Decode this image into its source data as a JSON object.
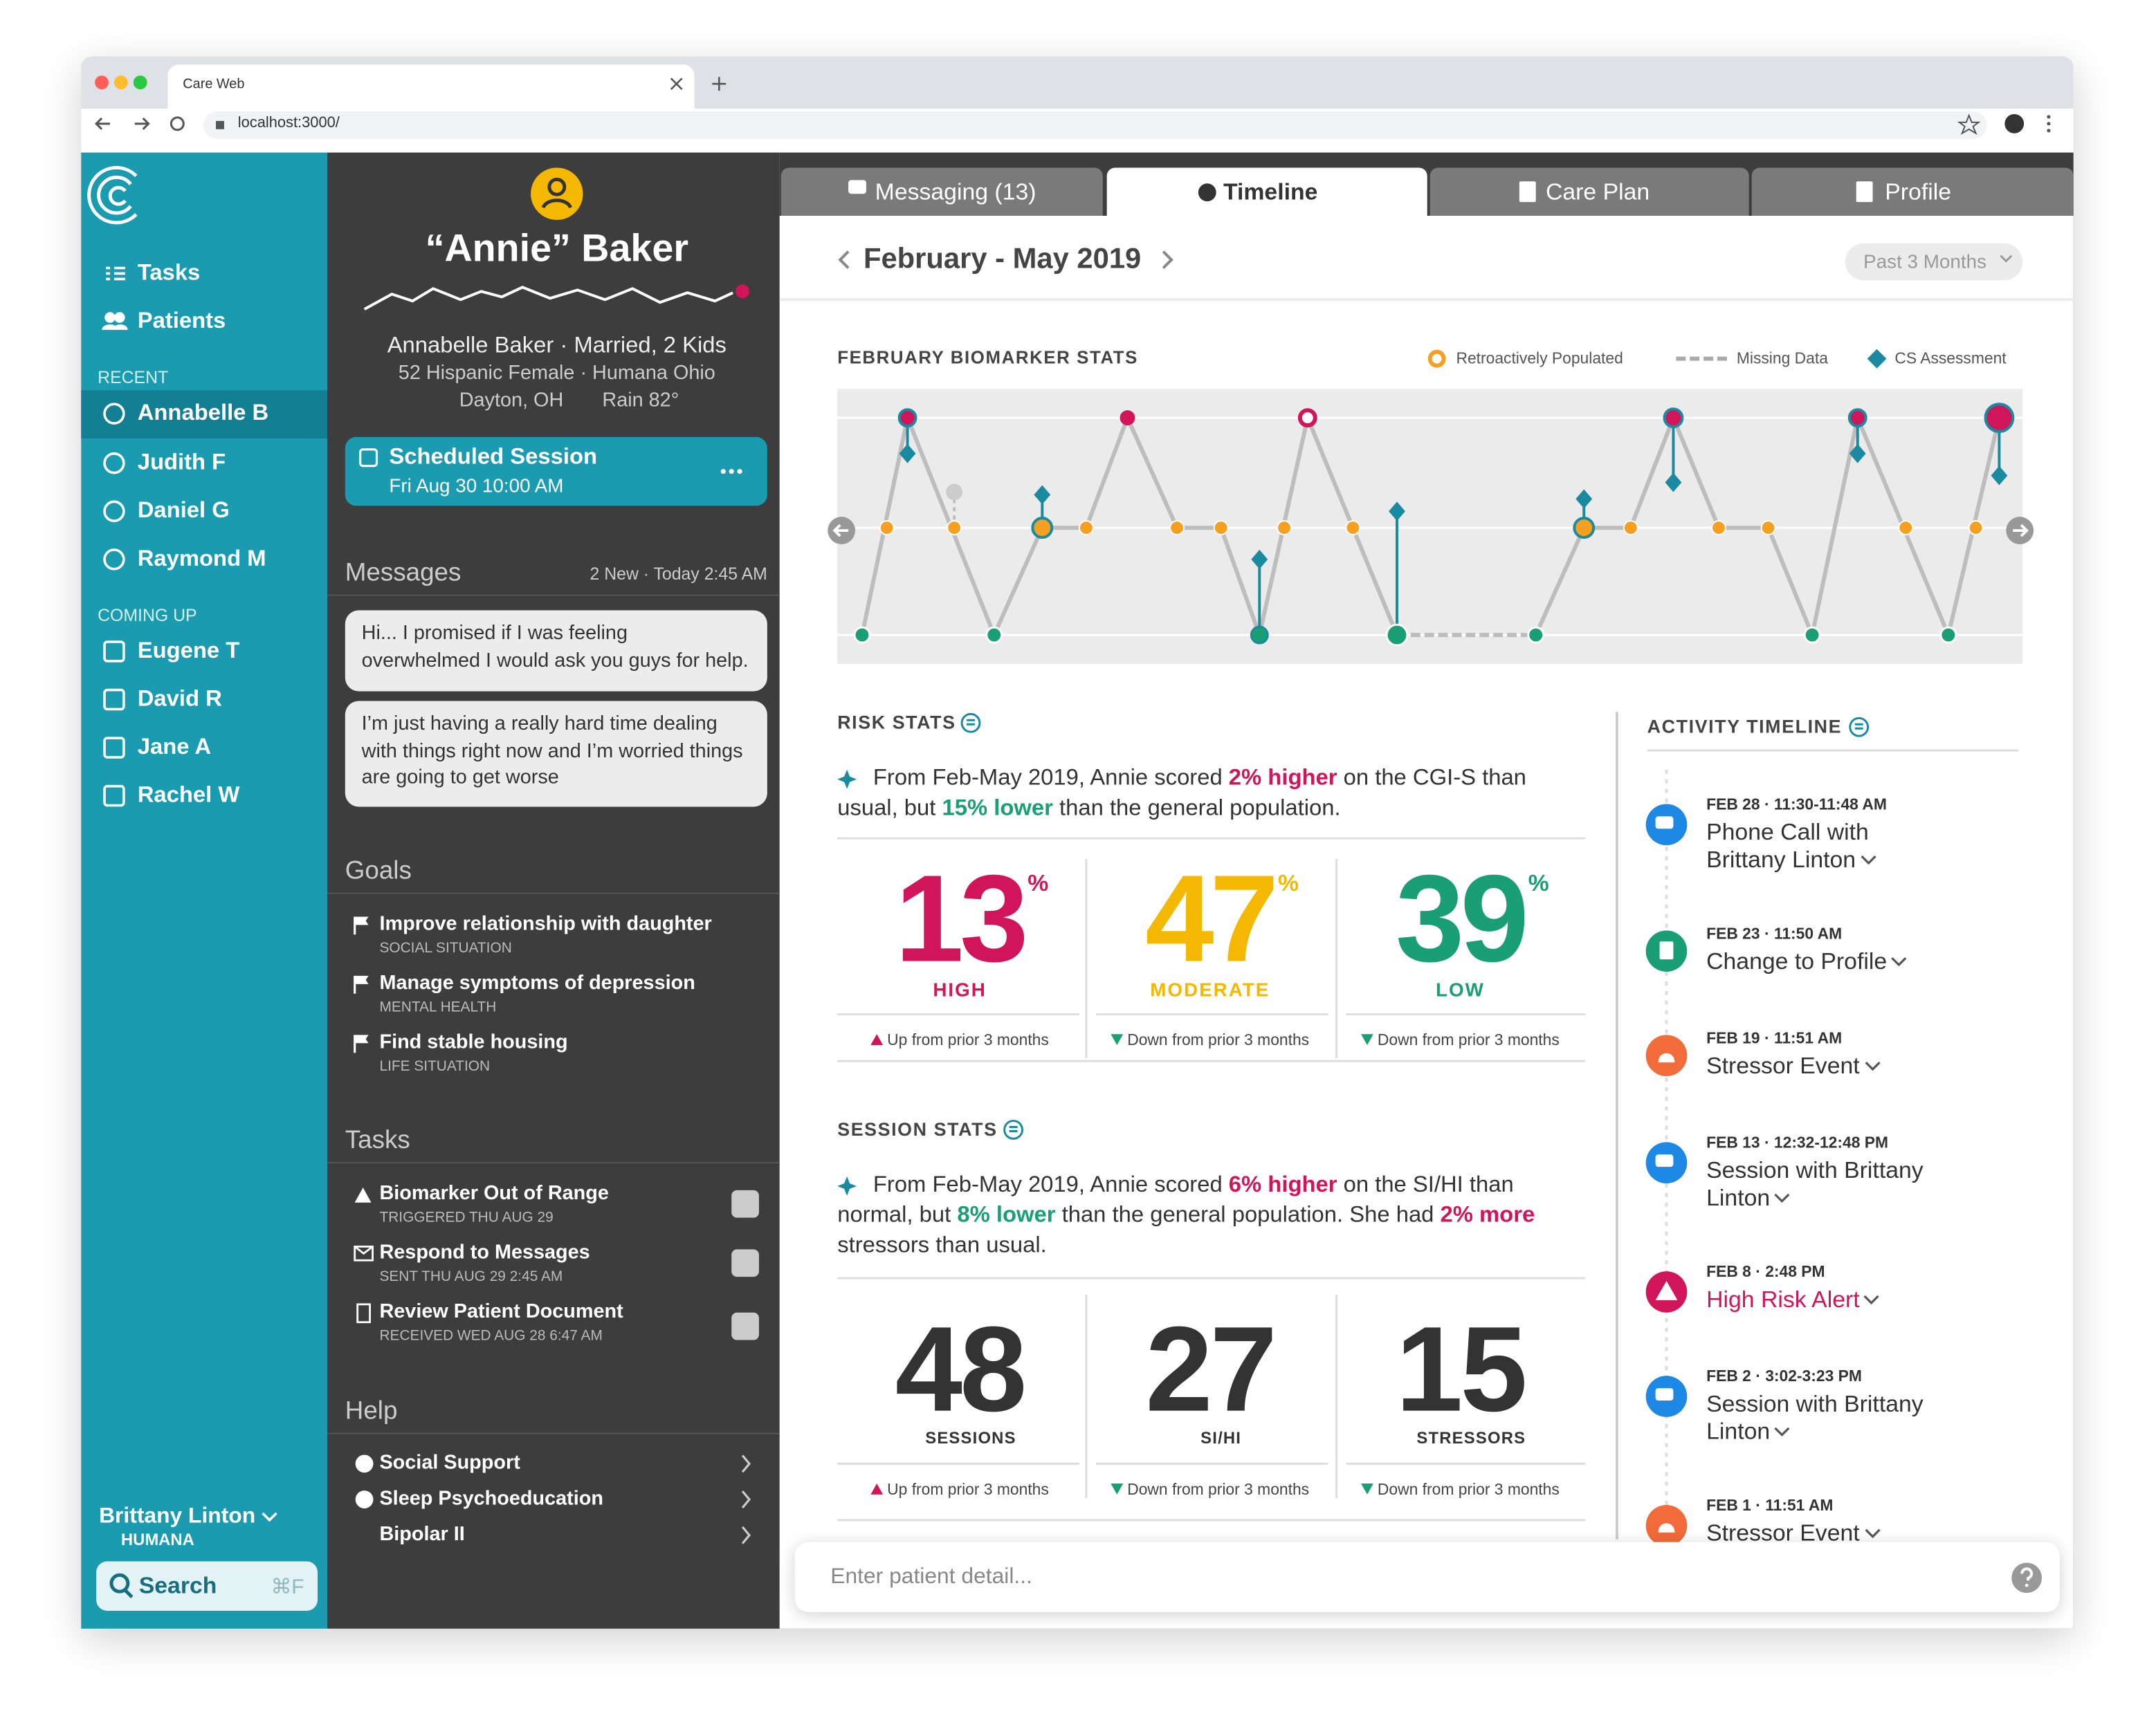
{
  "browser": {
    "tab_title": "Care Web",
    "url": "localhost:3000/"
  },
  "sidebar": {
    "nav": [
      "Tasks",
      "Patients"
    ],
    "recent_label": "RECENT",
    "recent": [
      "Annabelle B",
      "Judith F",
      "Daniel G",
      "Raymond M"
    ],
    "coming_up_label": "COMING UP",
    "coming_up": [
      "Eugene T",
      "David R",
      "Jane A",
      "Rachel W"
    ],
    "user": "Brittany Linton",
    "org": "HUMANA",
    "search": "Search",
    "search_shortcut": "⌘F"
  },
  "patient": {
    "name": "“Annie” Baker",
    "line1": "Annabelle Baker · Married, 2 Kids",
    "line2": "52 Hispanic Female · Humana Ohio",
    "location": "Dayton, OH",
    "weather": "Rain 82°",
    "session": {
      "title": "Scheduled Session",
      "time": "Fri Aug 30 10:00 AM"
    }
  },
  "messages": {
    "title": "Messages",
    "meta": "2 New · Today 2:45 AM",
    "items": [
      "Hi... I promised if I was feeling overwhelmed I would ask you guys for help.",
      "I’m just having a really hard time dealing with things right now and I’m worried things are going to get worse"
    ]
  },
  "goals": {
    "title": "Goals",
    "items": [
      {
        "title": "Improve relationship with daughter",
        "category": "SOCIAL SITUATION"
      },
      {
        "title": "Manage symptoms of depression",
        "category": "MENTAL HEALTH"
      },
      {
        "title": "Find stable housing",
        "category": "LIFE SITUATION"
      }
    ]
  },
  "tasks": {
    "title": "Tasks",
    "items": [
      {
        "title": "Biomarker Out of Range",
        "detail": "TRIGGERED THU AUG 29"
      },
      {
        "title": "Respond to Messages",
        "detail": "SENT THU AUG 29 2:45 AM"
      },
      {
        "title": "Review Patient Document",
        "detail": "RECEIVED WED AUG 28 6:47 AM"
      }
    ]
  },
  "help": {
    "title": "Help",
    "items": [
      "Social Support",
      "Sleep Psychoeducation",
      "Bipolar II"
    ]
  },
  "tabs": [
    "Messaging (13)",
    "Timeline",
    "Care Plan",
    "Profile"
  ],
  "timeline": {
    "range": "February - May 2019",
    "period": "Past 3 Months",
    "chart_title": "FEBRUARY BIOMARKER STATS",
    "legend": [
      "Retroactively Populated",
      "Missing Data",
      "CS Assessment"
    ]
  },
  "risk_stats": {
    "title": "RISK STATS",
    "summary": [
      "From Feb-May 2019, Annie scored ",
      "2% higher",
      " on the CGI-S than usual, but ",
      "15% lower",
      " than the general population."
    ],
    "stats": [
      {
        "value": 13,
        "unit": "%",
        "label": "HIGH",
        "trend": "Up from prior 3 months"
      },
      {
        "value": 47,
        "unit": "%",
        "label": "MODERATE",
        "trend": "Down from prior 3 months"
      },
      {
        "value": 39,
        "unit": "%",
        "label": "LOW",
        "trend": "Down from prior 3 months"
      }
    ]
  },
  "session_stats": {
    "title": "SESSION STATS",
    "summary": [
      "From Feb-May 2019, Annie scored ",
      "6% higher",
      " on the SI/HI than normal, but ",
      "8% lower",
      " than the general population. She had ",
      "2% more",
      " stressors than usual."
    ],
    "stats": [
      {
        "value": 48,
        "label": "SESSIONS",
        "trend": "Up from prior 3 months"
      },
      {
        "value": 27,
        "label": "SI/HI",
        "trend": "Down from prior 3 months"
      },
      {
        "value": 15,
        "label": "STRESSORS",
        "trend": "Down from prior 3 months"
      }
    ]
  },
  "activity": {
    "title": "ACTIVITY TIMELINE",
    "items": [
      {
        "time": "FEB 28 · 11:30-11:48 AM",
        "title": "Phone Call with Brittany Linton"
      },
      {
        "time": "FEB 23 · 11:50 AM",
        "title": "Change to Profile"
      },
      {
        "time": "FEB 19 · 11:51 AM",
        "title": "Stressor Event"
      },
      {
        "time": "FEB 13 · 12:32-12:48 PM",
        "title": "Session with Brittany Linton"
      },
      {
        "time": "FEB 8 · 2:48 PM",
        "title": "High Risk Alert"
      },
      {
        "time": "FEB 2 · 3:02-3:23 PM",
        "title": "Session with Brittany Linton"
      },
      {
        "time": "FEB 1 · 11:51 AM",
        "title": "Stressor Event"
      }
    ]
  },
  "input_placeholder": "Enter patient detail..."
}
